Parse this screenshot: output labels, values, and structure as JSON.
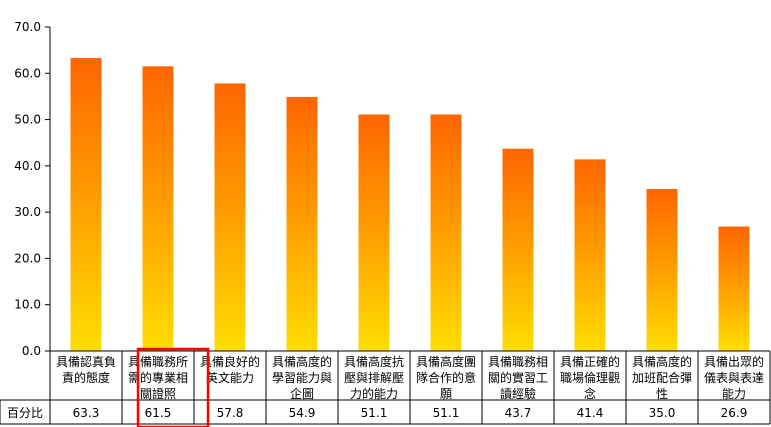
{
  "chart_data": {
    "type": "bar",
    "title": "",
    "xlabel": "",
    "ylabel": "",
    "ylim": [
      0,
      70
    ],
    "y_ticks": [
      "0.0",
      "10.0",
      "20.0",
      "30.0",
      "40.0",
      "50.0",
      "60.0",
      "70.0"
    ],
    "grid": false,
    "categories": [
      [
        "具備認真負",
        "責的態度"
      ],
      [
        "具備職務所",
        "需的專業相",
        "關證照"
      ],
      [
        "具備良好的",
        "英文能力"
      ],
      [
        "具備高度的",
        "學習能力與",
        "企圖"
      ],
      [
        "具備高度抗",
        "壓與排解壓",
        "力的能力"
      ],
      [
        "具備高度團",
        "隊合作的意",
        "願"
      ],
      [
        "具備職務相",
        "關的實習工",
        "讀經驗"
      ],
      [
        "具備正確的",
        "職場倫理觀",
        "念"
      ],
      [
        "具備高度的",
        "加班配合彈",
        "性"
      ],
      [
        "具備出眾的",
        "儀表與表達",
        "能力"
      ]
    ],
    "series": [
      {
        "name": "百分比",
        "values": [
          63.3,
          61.5,
          57.8,
          54.9,
          51.1,
          51.1,
          43.7,
          41.4,
          35.0,
          26.9
        ],
        "labels": [
          "63.3",
          "61.5",
          "57.8",
          "54.9",
          "51.1",
          "51.1",
          "43.7",
          "41.4",
          "35.0",
          "26.9"
        ]
      }
    ],
    "colors": {
      "bar_top": "#ff6600",
      "bar_mid": "#ff9900",
      "bar_bottom": "#ffdd00",
      "highlight_box": "#ff0000"
    },
    "highlight_index": 1
  }
}
